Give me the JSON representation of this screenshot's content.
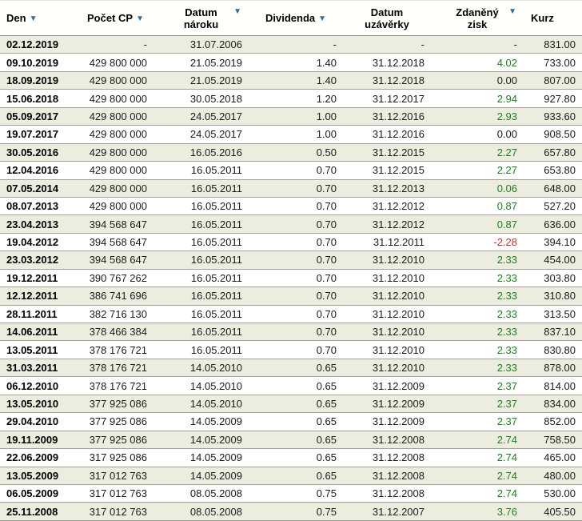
{
  "table": {
    "columns": [
      {
        "label": "Den",
        "sortable": true,
        "wrap": false
      },
      {
        "label": "Počet CP",
        "sortable": true,
        "wrap": false
      },
      {
        "label": "Datum nároku",
        "sortable": true,
        "wrap": true
      },
      {
        "label": "Dividenda",
        "sortable": true,
        "wrap": false
      },
      {
        "label": "Datum uzávěrky",
        "sortable": false,
        "wrap": true
      },
      {
        "label": "Zdaněný zisk",
        "sortable": true,
        "wrap": true
      },
      {
        "label": "Kurz",
        "sortable": false,
        "wrap": false
      }
    ],
    "rows": [
      [
        "02.12.2019",
        "-",
        "31.07.2006",
        "-",
        "-",
        "-",
        "831.00"
      ],
      [
        "09.10.2019",
        "429 800 000",
        "21.05.2019",
        "1.40",
        "31.12.2018",
        "4.02",
        "733.00"
      ],
      [
        "18.09.2019",
        "429 800 000",
        "21.05.2019",
        "1.40",
        "31.12.2018",
        "0.00",
        "807.00"
      ],
      [
        "15.06.2018",
        "429 800 000",
        "30.05.2018",
        "1.20",
        "31.12.2017",
        "2.94",
        "927.80"
      ],
      [
        "05.09.2017",
        "429 800 000",
        "24.05.2017",
        "1.00",
        "31.12.2016",
        "2.93",
        "933.60"
      ],
      [
        "19.07.2017",
        "429 800 000",
        "24.05.2017",
        "1.00",
        "31.12.2016",
        "0.00",
        "908.50"
      ],
      [
        "30.05.2016",
        "429 800 000",
        "16.05.2016",
        "0.50",
        "31.12.2015",
        "2.27",
        "657.80"
      ],
      [
        "12.04.2016",
        "429 800 000",
        "16.05.2011",
        "0.70",
        "31.12.2015",
        "2.27",
        "653.80"
      ],
      [
        "07.05.2014",
        "429 800 000",
        "16.05.2011",
        "0.70",
        "31.12.2013",
        "0.06",
        "648.00"
      ],
      [
        "08.07.2013",
        "429 800 000",
        "16.05.2011",
        "0.70",
        "31.12.2012",
        "0.87",
        "527.20"
      ],
      [
        "23.04.2013",
        "394 568 647",
        "16.05.2011",
        "0.70",
        "31.12.2012",
        "0.87",
        "636.00"
      ],
      [
        "19.04.2012",
        "394 568 647",
        "16.05.2011",
        "0.70",
        "31.12.2011",
        "-2.28",
        "394.10"
      ],
      [
        "23.03.2012",
        "394 568 647",
        "16.05.2011",
        "0.70",
        "31.12.2010",
        "2.33",
        "454.00"
      ],
      [
        "19.12.2011",
        "390 767 262",
        "16.05.2011",
        "0.70",
        "31.12.2010",
        "2.33",
        "303.80"
      ],
      [
        "12.12.2011",
        "386 741 696",
        "16.05.2011",
        "0.70",
        "31.12.2010",
        "2.33",
        "310.80"
      ],
      [
        "28.11.2011",
        "382 716 130",
        "16.05.2011",
        "0.70",
        "31.12.2010",
        "2.33",
        "313.50"
      ],
      [
        "14.06.2011",
        "378 466 384",
        "16.05.2011",
        "0.70",
        "31.12.2010",
        "2.33",
        "837.10"
      ],
      [
        "13.05.2011",
        "378 176 721",
        "16.05.2011",
        "0.70",
        "31.12.2010",
        "2.33",
        "830.80"
      ],
      [
        "31.03.2011",
        "378 176 721",
        "14.05.2010",
        "0.65",
        "31.12.2010",
        "2.33",
        "878.00"
      ],
      [
        "06.12.2010",
        "378 176 721",
        "14.05.2010",
        "0.65",
        "31.12.2009",
        "2.37",
        "814.00"
      ],
      [
        "13.05.2010",
        "377 925 086",
        "14.05.2010",
        "0.65",
        "31.12.2009",
        "2.37",
        "834.00"
      ],
      [
        "29.04.2010",
        "377 925 086",
        "14.05.2009",
        "0.65",
        "31.12.2009",
        "2.37",
        "852.00"
      ],
      [
        "19.11.2009",
        "377 925 086",
        "14.05.2009",
        "0.65",
        "31.12.2008",
        "2.74",
        "758.50"
      ],
      [
        "22.06.2009",
        "317 925 086",
        "14.05.2009",
        "0.65",
        "31.12.2008",
        "2.74",
        "465.00"
      ],
      [
        "13.05.2009",
        "317 012 763",
        "14.05.2009",
        "0.65",
        "31.12.2008",
        "2.74",
        "480.00"
      ],
      [
        "06.05.2009",
        "317 012 763",
        "08.05.2008",
        "0.75",
        "31.12.2008",
        "2.74",
        "530.00"
      ],
      [
        "25.11.2008",
        "317 012 763",
        "08.05.2008",
        "0.75",
        "31.12.2007",
        "3.76",
        "405.50"
      ]
    ]
  },
  "icons": {
    "sort_desc": "▼"
  },
  "colors": {
    "positive": "#1e7e1e",
    "negative": "#be3333",
    "sort-arrow": "#336b9b",
    "stripe": "#ededdf",
    "row-border": "#a2a29a",
    "header-border": "#8f8f8f"
  }
}
